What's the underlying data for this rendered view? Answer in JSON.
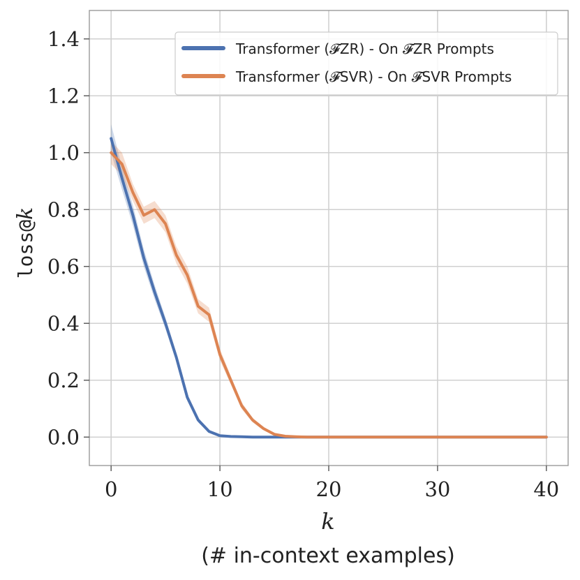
{
  "chart_data": {
    "type": "line",
    "xlabel": "k",
    "xlabel_sub": "(# in-context examples)",
    "ylabel": "loss@k",
    "xlim": [
      -2,
      42
    ],
    "ylim": [
      -0.1,
      1.5
    ],
    "xticks": [
      0,
      10,
      20,
      30,
      40
    ],
    "xtick_labels": [
      "0",
      "10",
      "20",
      "30",
      "40"
    ],
    "yticks": [
      0.0,
      0.2,
      0.4,
      0.6,
      0.8,
      1.0,
      1.2,
      1.4
    ],
    "ytick_labels": [
      "0.0",
      "0.2",
      "0.4",
      "0.6",
      "0.8",
      "1.0",
      "1.2",
      "1.4"
    ],
    "grid": true,
    "legend_position": "top-right",
    "series": [
      {
        "name": "Transformer (𝓕ZR) - On 𝓕ZR Prompts",
        "color": "#4c72b0",
        "x": [
          0,
          1,
          2,
          3,
          4,
          5,
          6,
          7,
          8,
          9,
          10,
          11,
          12,
          13,
          14,
          15,
          16,
          17,
          18,
          19,
          20,
          21,
          22,
          23,
          24,
          25,
          26,
          27,
          28,
          29,
          30,
          31,
          32,
          33,
          34,
          35,
          36,
          37,
          38,
          39,
          40
        ],
        "values": [
          1.05,
          0.91,
          0.78,
          0.63,
          0.51,
          0.4,
          0.28,
          0.14,
          0.06,
          0.02,
          0.005,
          0.002,
          0.001,
          0,
          0,
          0,
          0,
          0,
          0,
          0,
          0,
          0,
          0,
          0,
          0,
          0,
          0,
          0,
          0,
          0,
          0,
          0,
          0,
          0,
          0,
          0,
          0,
          0,
          0,
          0,
          0
        ],
        "band": [
          0.05,
          0.04,
          0.035,
          0.03,
          0.025,
          0.02,
          0.015,
          0.012,
          0.008,
          0.005,
          0.003,
          0.001,
          0.001,
          0,
          0,
          0,
          0,
          0,
          0,
          0,
          0,
          0,
          0,
          0,
          0,
          0,
          0,
          0,
          0,
          0,
          0,
          0,
          0,
          0,
          0,
          0,
          0,
          0,
          0,
          0,
          0
        ]
      },
      {
        "name": "Transformer (𝓕SVR) - On 𝓕SVR Prompts",
        "color": "#dd8452",
        "x": [
          0,
          1,
          2,
          3,
          4,
          5,
          6,
          7,
          8,
          9,
          10,
          11,
          12,
          13,
          14,
          15,
          16,
          17,
          18,
          19,
          20,
          21,
          22,
          23,
          24,
          25,
          26,
          27,
          28,
          29,
          30,
          31,
          32,
          33,
          34,
          35,
          36,
          37,
          38,
          39,
          40
        ],
        "values": [
          1.0,
          0.96,
          0.86,
          0.78,
          0.8,
          0.75,
          0.64,
          0.57,
          0.46,
          0.43,
          0.29,
          0.2,
          0.11,
          0.06,
          0.03,
          0.01,
          0.003,
          0.001,
          0,
          0,
          0,
          0,
          0,
          0,
          0,
          0,
          0,
          0,
          0,
          0,
          0,
          0,
          0,
          0,
          0,
          0,
          0,
          0,
          0,
          0,
          0
        ],
        "band": [
          0.04,
          0.04,
          0.03,
          0.03,
          0.03,
          0.03,
          0.03,
          0.03,
          0.025,
          0.025,
          0.02,
          0.015,
          0.012,
          0.008,
          0.006,
          0.004,
          0.002,
          0.001,
          0,
          0,
          0,
          0,
          0,
          0,
          0,
          0,
          0,
          0,
          0,
          0,
          0,
          0,
          0,
          0,
          0,
          0,
          0,
          0,
          0,
          0,
          0
        ]
      }
    ]
  }
}
